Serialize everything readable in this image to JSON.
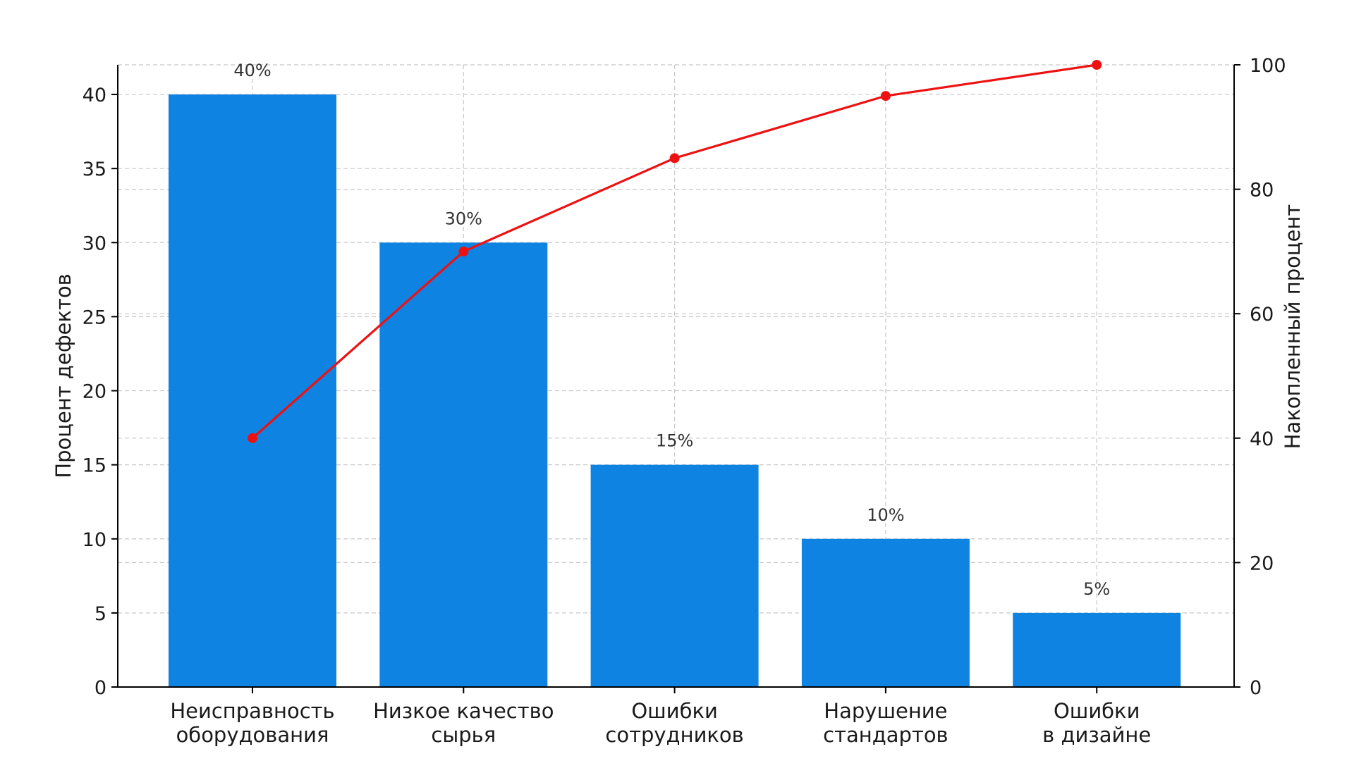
{
  "chart_data": {
    "type": "bar",
    "categories": [
      [
        "Неисправность",
        "оборудования"
      ],
      [
        "Низкое качество",
        "сырья"
      ],
      [
        "Ошибки",
        "сотрудников"
      ],
      [
        "Нарушение",
        "стандартов"
      ],
      [
        "Ошибки",
        "в дизайне"
      ]
    ],
    "values": [
      40,
      30,
      15,
      10,
      5
    ],
    "data_labels": [
      "40%",
      "30%",
      "15%",
      "10%",
      "5%"
    ],
    "cumulative": [
      40,
      70,
      85,
      95,
      100
    ],
    "ylabel": "Процент дефектов",
    "y2label": "Накопленный процент",
    "ylim": [
      0,
      42
    ],
    "y2lim": [
      0,
      100
    ],
    "yticks": [
      0,
      5,
      10,
      15,
      20,
      25,
      30,
      35,
      40
    ],
    "y2ticks": [
      0,
      20,
      40,
      60,
      80,
      100
    ],
    "grid": true,
    "colors": {
      "bar": "#0f83e2",
      "line": "#ee1111"
    }
  }
}
